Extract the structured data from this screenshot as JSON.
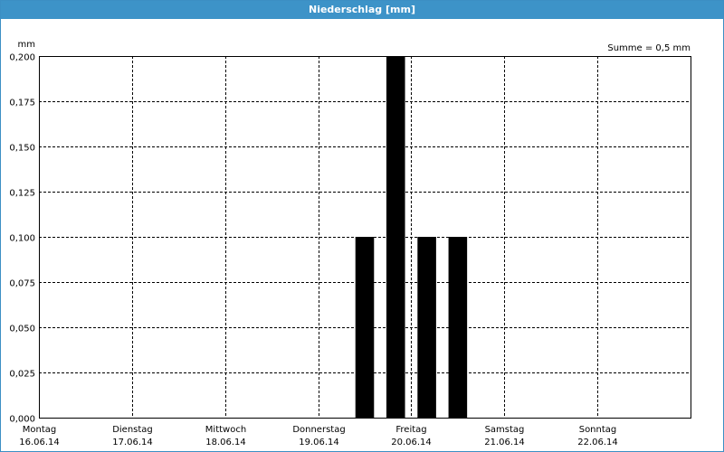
{
  "window": {
    "title": "Niederschlag [mm]"
  },
  "chart_data": {
    "type": "bar",
    "unit_label": "mm",
    "sum_label": "Summe = 0,5 mm",
    "ylim": [
      0,
      0.2
    ],
    "y_ticks": [
      "0,000",
      "0,025",
      "0,050",
      "0,075",
      "0,100",
      "0,125",
      "0,150",
      "0,175",
      "0,200"
    ],
    "days": [
      {
        "weekday": "Montag",
        "date": "16.06.14"
      },
      {
        "weekday": "Dienstag",
        "date": "17.06.14"
      },
      {
        "weekday": "Mittwoch",
        "date": "18.06.14"
      },
      {
        "weekday": "Donnerstag",
        "date": "19.06.14"
      },
      {
        "weekday": "Freitag",
        "date": "20.06.14"
      },
      {
        "weekday": "Samstag",
        "date": "21.06.14"
      },
      {
        "weekday": "Sonntag",
        "date": "22.06.14"
      }
    ],
    "x_range_days": [
      0,
      7
    ],
    "bar_width_days": 0.2,
    "bars": [
      {
        "x_day": 3.4,
        "value": 0.1
      },
      {
        "x_day": 3.733,
        "value": 0.2
      },
      {
        "x_day": 4.067,
        "value": 0.1
      },
      {
        "x_day": 4.4,
        "value": 0.1
      }
    ],
    "grid": true,
    "bar_color": "#000000"
  }
}
